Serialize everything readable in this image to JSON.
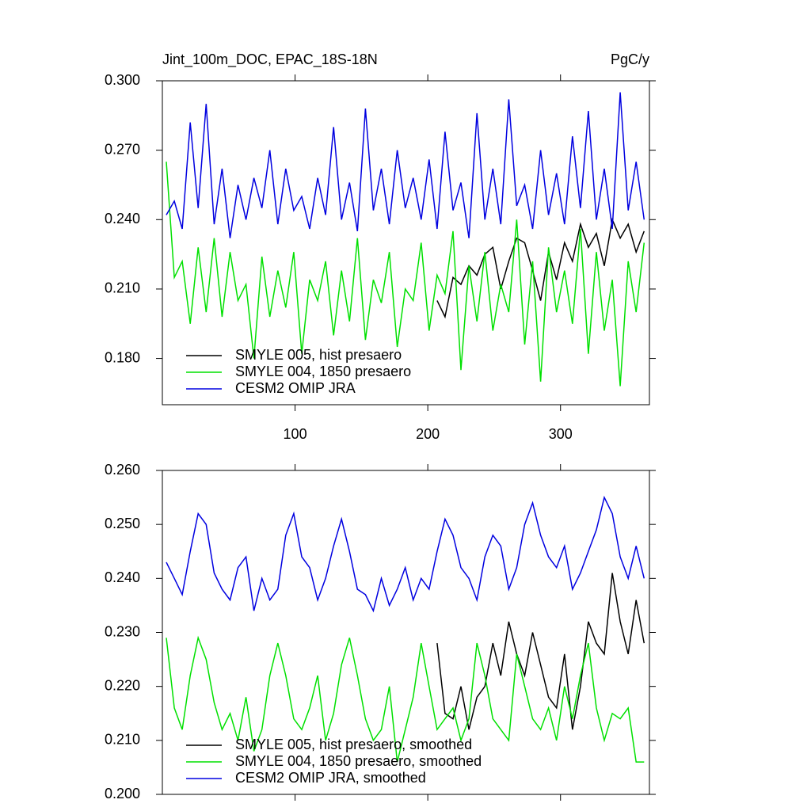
{
  "chart_data": [
    {
      "type": "line",
      "title": "Jint_100m_DOC, EPAC_18S-18N",
      "units": "PgC/y",
      "x": [
        3,
        9,
        15,
        21,
        27,
        33,
        39,
        45,
        51,
        57,
        63,
        69,
        75,
        81,
        87,
        93,
        99,
        105,
        111,
        117,
        123,
        129,
        135,
        141,
        147,
        153,
        159,
        165,
        171,
        177,
        183,
        189,
        195,
        201,
        207,
        213,
        219,
        225,
        231,
        237,
        243,
        249,
        255,
        261,
        267,
        273,
        279,
        285,
        291,
        297,
        303,
        309,
        315,
        321,
        327,
        333,
        339,
        345,
        351,
        357,
        363
      ],
      "xlim": [
        0,
        367
      ],
      "xticks": [
        100,
        200,
        300
      ],
      "xtick_labels": true,
      "ylim": [
        0.16,
        0.3
      ],
      "yticks": [
        {
          "value": 0.18,
          "label": "0.180"
        },
        {
          "value": 0.21,
          "label": "0.210"
        },
        {
          "value": 0.24,
          "label": "0.240"
        },
        {
          "value": 0.27,
          "label": "0.270"
        },
        {
          "value": 0.3,
          "label": "0.300"
        }
      ],
      "legend": "lower left",
      "series": [
        {
          "name": "SMYLE 005, hist presaero",
          "color": "#000000",
          "values": [
            null,
            null,
            null,
            null,
            null,
            null,
            null,
            null,
            null,
            null,
            null,
            null,
            null,
            null,
            null,
            null,
            null,
            null,
            null,
            null,
            null,
            null,
            null,
            null,
            null,
            null,
            null,
            null,
            null,
            null,
            null,
            null,
            null,
            null,
            0.205,
            0.198,
            0.215,
            0.212,
            0.22,
            0.216,
            0.225,
            0.228,
            0.21,
            0.222,
            0.232,
            0.23,
            0.218,
            0.205,
            0.226,
            0.214,
            0.23,
            0.222,
            0.238,
            0.228,
            0.234,
            0.22,
            0.24,
            0.232,
            0.238,
            0.226,
            0.235
          ]
        },
        {
          "name": "SMYLE 004, 1850 presaero",
          "color": "#00e000",
          "values": [
            0.265,
            0.215,
            0.222,
            0.195,
            0.228,
            0.2,
            0.232,
            0.198,
            0.226,
            0.205,
            0.212,
            0.18,
            0.224,
            0.198,
            0.218,
            0.202,
            0.226,
            0.182,
            0.214,
            0.205,
            0.222,
            0.19,
            0.218,
            0.196,
            0.232,
            0.188,
            0.214,
            0.204,
            0.226,
            0.185,
            0.21,
            0.205,
            0.23,
            0.192,
            0.216,
            0.208,
            0.235,
            0.175,
            0.22,
            0.196,
            0.226,
            0.192,
            0.212,
            0.2,
            0.24,
            0.186,
            0.222,
            0.17,
            0.228,
            0.2,
            0.218,
            0.195,
            0.236,
            0.182,
            0.226,
            0.192,
            0.214,
            0.168,
            0.222,
            0.2,
            0.23
          ]
        },
        {
          "name": "CESM2 OMIP JRA",
          "color": "#0000e0",
          "values": [
            0.242,
            0.248,
            0.236,
            0.282,
            0.245,
            0.29,
            0.238,
            0.262,
            0.232,
            0.255,
            0.24,
            0.258,
            0.245,
            0.27,
            0.238,
            0.262,
            0.244,
            0.25,
            0.236,
            0.258,
            0.242,
            0.28,
            0.24,
            0.256,
            0.235,
            0.288,
            0.244,
            0.262,
            0.238,
            0.27,
            0.245,
            0.258,
            0.24,
            0.266,
            0.236,
            0.278,
            0.244,
            0.256,
            0.232,
            0.286,
            0.24,
            0.262,
            0.238,
            0.292,
            0.246,
            0.255,
            0.236,
            0.27,
            0.242,
            0.26,
            0.238,
            0.276,
            0.245,
            0.287,
            0.24,
            0.262,
            0.236,
            0.295,
            0.244,
            0.265,
            0.24
          ]
        }
      ]
    },
    {
      "type": "line",
      "x": [
        3,
        9,
        15,
        21,
        27,
        33,
        39,
        45,
        51,
        57,
        63,
        69,
        75,
        81,
        87,
        93,
        99,
        105,
        111,
        117,
        123,
        129,
        135,
        141,
        147,
        153,
        159,
        165,
        171,
        177,
        183,
        189,
        195,
        201,
        207,
        213,
        219,
        225,
        231,
        237,
        243,
        249,
        255,
        261,
        267,
        273,
        279,
        285,
        291,
        297,
        303,
        309,
        315,
        321,
        327,
        333,
        339,
        345,
        351,
        357,
        363
      ],
      "xlim": [
        0,
        367
      ],
      "xticks": [
        100,
        200,
        300
      ],
      "xtick_labels": false,
      "ylim": [
        0.2,
        0.26
      ],
      "yticks": [
        {
          "value": 0.2,
          "label": "0.200"
        },
        {
          "value": 0.21,
          "label": "0.210"
        },
        {
          "value": 0.22,
          "label": "0.220"
        },
        {
          "value": 0.23,
          "label": "0.230"
        },
        {
          "value": 0.24,
          "label": "0.240"
        },
        {
          "value": 0.25,
          "label": "0.250"
        },
        {
          "value": 0.26,
          "label": "0.260"
        }
      ],
      "legend": "lower left",
      "series": [
        {
          "name": "SMYLE 005, hist presaero, smoothed",
          "color": "#000000",
          "values": [
            null,
            null,
            null,
            null,
            null,
            null,
            null,
            null,
            null,
            null,
            null,
            null,
            null,
            null,
            null,
            null,
            null,
            null,
            null,
            null,
            null,
            null,
            null,
            null,
            null,
            null,
            null,
            null,
            null,
            null,
            null,
            null,
            null,
            null,
            0.228,
            0.215,
            0.214,
            0.22,
            0.212,
            0.218,
            0.22,
            0.228,
            0.222,
            0.232,
            0.226,
            0.222,
            0.23,
            0.224,
            0.218,
            0.216,
            0.226,
            0.212,
            0.22,
            0.232,
            0.228,
            0.226,
            0.241,
            0.232,
            0.226,
            0.236,
            0.228
          ]
        },
        {
          "name": "SMYLE 004, 1850 presaero, smoothed",
          "color": "#00e000",
          "values": [
            0.229,
            0.216,
            0.212,
            0.222,
            0.229,
            0.225,
            0.217,
            0.212,
            0.215,
            0.21,
            0.218,
            0.208,
            0.212,
            0.222,
            0.228,
            0.222,
            0.214,
            0.212,
            0.216,
            0.222,
            0.21,
            0.215,
            0.224,
            0.229,
            0.222,
            0.214,
            0.21,
            0.212,
            0.22,
            0.206,
            0.212,
            0.218,
            0.228,
            0.22,
            0.212,
            0.214,
            0.216,
            0.21,
            0.214,
            0.228,
            0.222,
            0.214,
            0.212,
            0.21,
            0.226,
            0.22,
            0.214,
            0.212,
            0.216,
            0.21,
            0.22,
            0.214,
            0.222,
            0.228,
            0.216,
            0.21,
            0.215,
            0.214,
            0.216,
            0.206,
            0.206
          ]
        },
        {
          "name": "CESM2 OMIP JRA, smoothed",
          "color": "#0000e0",
          "values": [
            0.243,
            0.24,
            0.237,
            0.245,
            0.252,
            0.25,
            0.241,
            0.238,
            0.236,
            0.242,
            0.244,
            0.234,
            0.24,
            0.236,
            0.238,
            0.248,
            0.252,
            0.244,
            0.242,
            0.236,
            0.24,
            0.246,
            0.251,
            0.245,
            0.238,
            0.237,
            0.234,
            0.24,
            0.235,
            0.238,
            0.242,
            0.236,
            0.24,
            0.238,
            0.245,
            0.251,
            0.248,
            0.242,
            0.24,
            0.236,
            0.244,
            0.248,
            0.246,
            0.238,
            0.242,
            0.25,
            0.254,
            0.248,
            0.244,
            0.242,
            0.246,
            0.238,
            0.241,
            0.245,
            0.249,
            0.255,
            0.252,
            0.244,
            0.24,
            0.246,
            0.24
          ]
        }
      ]
    }
  ]
}
